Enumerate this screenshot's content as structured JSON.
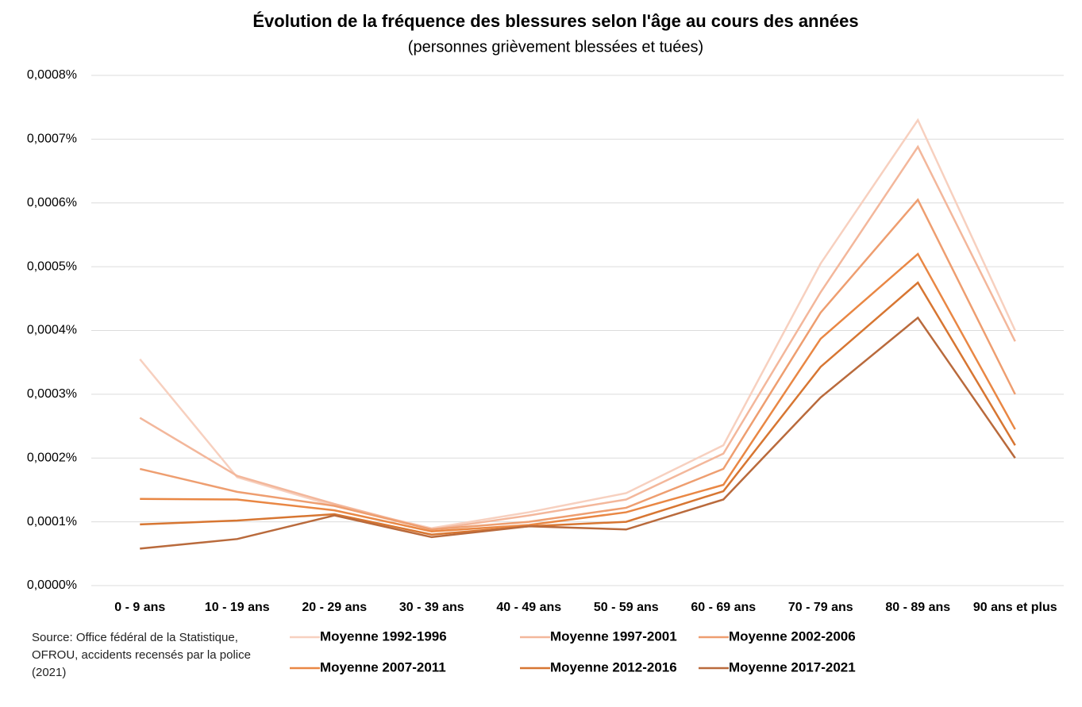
{
  "chart_data": {
    "type": "line",
    "title": "Évolution de la fréquence des blessures selon l'âge au cours des années",
    "subtitle": "(personnes grièvement blessées et tuées)",
    "source": "Source: Office fédéral de la Statistique, OFROU, accidents recensés par la police (2021)",
    "categories": [
      "0 - 9 ans",
      "10 - 19 ans",
      "20 - 29 ans",
      "30 - 39 ans",
      "40 - 49 ans",
      "50 - 59 ans",
      "60 - 69 ans",
      "70 - 79 ans",
      "80 - 89 ans",
      "90 ans et plus"
    ],
    "series": [
      {
        "name": "Moyenne 1992-1996",
        "color": "#f7d0bf",
        "values": [
          0.000355,
          0.00017,
          0.000125,
          9e-05,
          0.000115,
          0.000145,
          0.00022,
          0.000505,
          0.00073,
          0.0004
        ]
      },
      {
        "name": "Moyenne 1997-2001",
        "color": "#f3b79b",
        "values": [
          0.000263,
          0.000172,
          0.000128,
          8.8e-05,
          0.00011,
          0.000135,
          0.000207,
          0.00046,
          0.000688,
          0.000383
        ]
      },
      {
        "name": "Moyenne 2002-2006",
        "color": "#ee9e70",
        "values": [
          0.000183,
          0.000147,
          0.000125,
          8.8e-05,
          0.0001,
          0.000122,
          0.000183,
          0.000428,
          0.000605,
          0.0003
        ]
      },
      {
        "name": "Moyenne 2007-2011",
        "color": "#e98744",
        "values": [
          0.000136,
          0.000135,
          0.000118,
          8.5e-05,
          9.5e-05,
          0.000115,
          0.000158,
          0.000387,
          0.00052,
          0.000245
        ]
      },
      {
        "name": "Moyenne 2012-2016",
        "color": "#d77632",
        "values": [
          9.6e-05,
          0.000102,
          0.000112,
          8e-05,
          9.3e-05,
          0.0001,
          0.000148,
          0.000343,
          0.000475,
          0.00022
        ]
      },
      {
        "name": "Moyenne 2017-2021",
        "color": "#b96a3c",
        "values": [
          5.8e-05,
          7.3e-05,
          0.00011,
          7.6e-05,
          9.3e-05,
          8.8e-05,
          0.000135,
          0.000295,
          0.00042,
          0.0002
        ]
      }
    ],
    "ylim": [
      0,
      0.0008
    ],
    "yticks": [
      {
        "value": 0,
        "label": "0,0000%"
      },
      {
        "value": 0.0001,
        "label": "0,0001%"
      },
      {
        "value": 0.0002,
        "label": "0,0002%"
      },
      {
        "value": 0.0003,
        "label": "0,0003%"
      },
      {
        "value": 0.0004,
        "label": "0,0004%"
      },
      {
        "value": 0.0005,
        "label": "0,0005%"
      },
      {
        "value": 0.0006,
        "label": "0,0006%"
      },
      {
        "value": 0.0007,
        "label": "0,0007%"
      },
      {
        "value": 0.0008,
        "label": "0,0008%"
      }
    ],
    "grid": true
  }
}
